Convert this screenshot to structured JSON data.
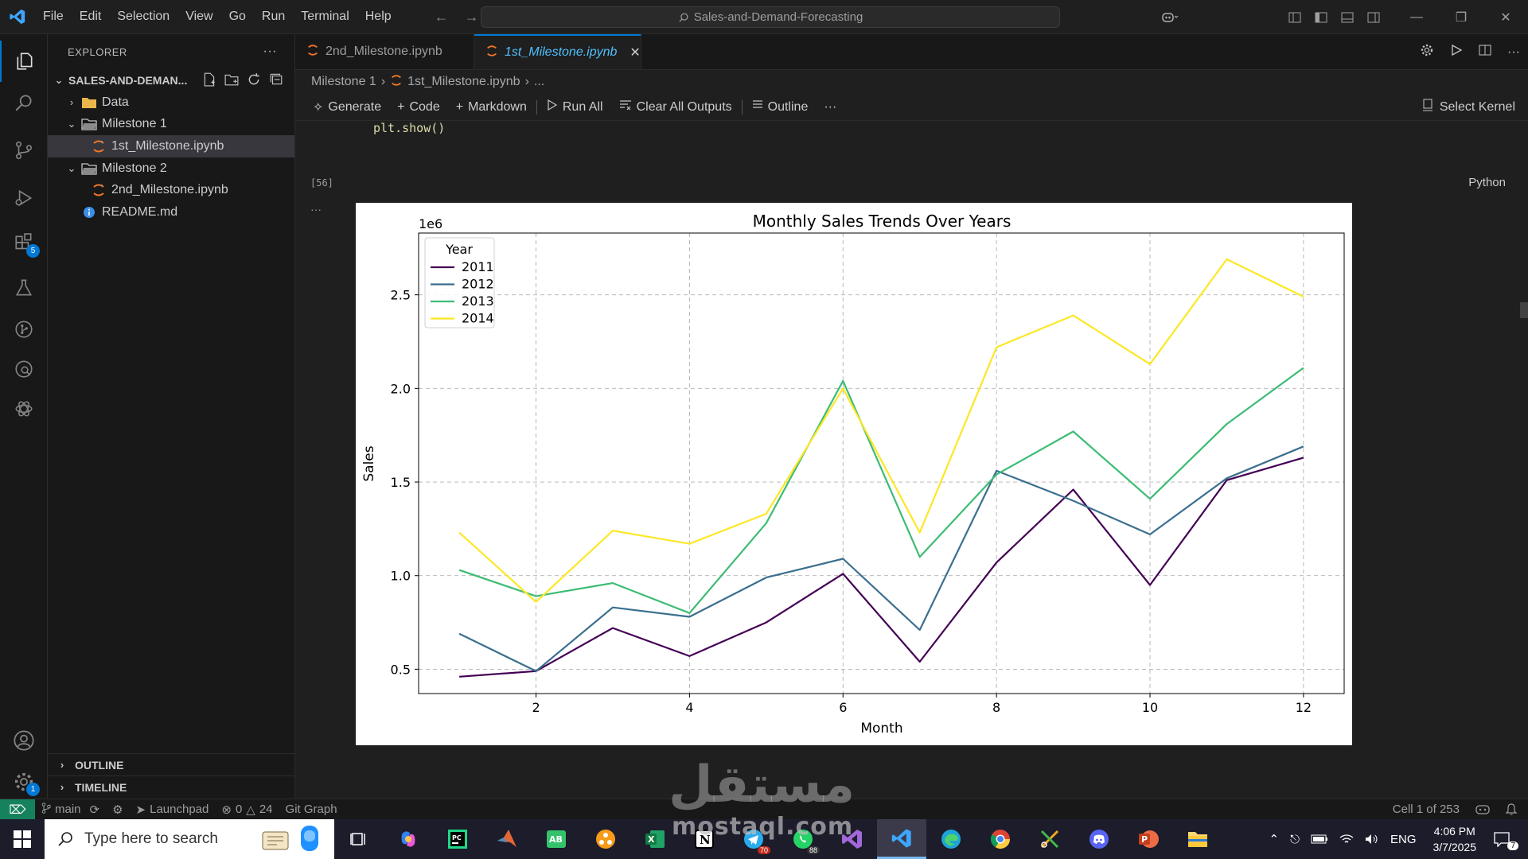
{
  "menu": [
    "File",
    "Edit",
    "Selection",
    "View",
    "Go",
    "Run",
    "Terminal",
    "Help"
  ],
  "command_center": "Sales-and-Demand-Forecasting",
  "activity": {
    "extensions_badge": "5",
    "settings_badge": "1"
  },
  "explorer": {
    "title": "EXPLORER",
    "root": "SALES-AND-DEMAN...",
    "items": [
      {
        "label": "Data",
        "kind": "folder",
        "indent": 1,
        "expanded": false
      },
      {
        "label": "Milestone 1",
        "kind": "folder",
        "indent": 1,
        "expanded": true
      },
      {
        "label": "1st_Milestone.ipynb",
        "kind": "notebook",
        "indent": 2,
        "selected": true
      },
      {
        "label": "Milestone 2",
        "kind": "folder",
        "indent": 1,
        "expanded": true
      },
      {
        "label": "2nd_Milestone.ipynb",
        "kind": "notebook",
        "indent": 2
      },
      {
        "label": "README.md",
        "kind": "info",
        "indent": 1
      }
    ],
    "outline": "OUTLINE",
    "timeline": "TIMELINE"
  },
  "tabs": [
    {
      "label": "2nd_Milestone.ipynb",
      "active": false
    },
    {
      "label": "1st_Milestone.ipynb",
      "active": true
    }
  ],
  "breadcrumb": {
    "folder": "Milestone 1",
    "file": "1st_Milestone.ipynb",
    "more": "..."
  },
  "toolbar": {
    "generate": "Generate",
    "code": "Code",
    "markdown": "Markdown",
    "run_all": "Run All",
    "clear": "Clear All Outputs",
    "outline": "Outline",
    "more": "···",
    "kernel": "Select Kernel"
  },
  "cell": {
    "code": "plt.show()",
    "exec_count": "[56]",
    "language": "Python",
    "output_more": "···"
  },
  "chart_data": {
    "type": "line",
    "title": "Monthly Sales Trends Over Years",
    "xlabel": "Month",
    "ylabel": "Sales",
    "y_offset_label": "1e6",
    "legend_title": "Year",
    "legend_position": "top-left",
    "grid": true,
    "xlim": [
      0.47,
      12.53
    ],
    "ylim": [
      0.37,
      2.83
    ],
    "xticks": [
      2,
      4,
      6,
      8,
      10,
      12
    ],
    "xtick_labels": [
      "2",
      "4",
      "6",
      "8",
      "10",
      "12"
    ],
    "yticks": [
      0.5,
      1.0,
      1.5,
      2.0,
      2.5
    ],
    "ytick_labels": [
      "0.5",
      "1.0",
      "1.5",
      "2.0",
      "2.5"
    ],
    "x": [
      1,
      2,
      3,
      4,
      5,
      6,
      7,
      8,
      9,
      10,
      11,
      12
    ],
    "series": [
      {
        "name": "2011",
        "color": "#440154",
        "values": [
          0.46,
          0.49,
          0.72,
          0.57,
          0.75,
          1.01,
          0.54,
          1.07,
          1.46,
          0.95,
          1.51,
          1.63
        ]
      },
      {
        "name": "2012",
        "color": "#3b6f8f",
        "values": [
          0.69,
          0.49,
          0.83,
          0.78,
          0.99,
          1.09,
          0.71,
          1.56,
          1.4,
          1.22,
          1.52,
          1.69
        ]
      },
      {
        "name": "2013",
        "color": "#3dbc74",
        "values": [
          1.03,
          0.89,
          0.96,
          0.8,
          1.28,
          2.04,
          1.1,
          1.54,
          1.77,
          1.41,
          1.81,
          2.11
        ]
      },
      {
        "name": "2014",
        "color": "#fde725",
        "values": [
          1.23,
          0.86,
          1.24,
          1.17,
          1.33,
          2.0,
          1.23,
          2.22,
          2.39,
          2.13,
          2.69,
          2.49
        ]
      }
    ]
  },
  "status": {
    "branch": "main",
    "launchpad": "Launchpad",
    "errors": "0",
    "warnings": "24",
    "git_graph": "Git Graph",
    "cell_info": "Cell 1 of 253"
  },
  "taskbar": {
    "search_placeholder": "Type here to search",
    "telegram_badge": "70",
    "whatsapp_badge": "88",
    "lang": "ENG",
    "time": "4:06 PM",
    "date": "3/7/2025",
    "notifications": "7"
  },
  "watermark": {
    "arabic": "مستقل",
    "latin": "mostaql.com"
  }
}
